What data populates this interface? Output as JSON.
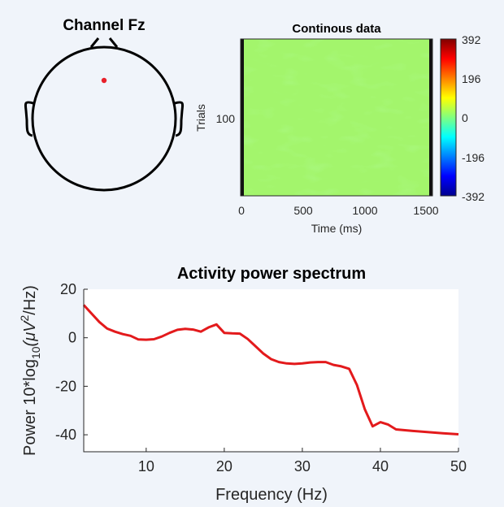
{
  "topomap": {
    "title": "Channel Fz",
    "electrode_color": "#e8202a"
  },
  "erpimage": {
    "title": "Continous data",
    "ylabel": "Trials",
    "xlabel": "Time (ms)",
    "xticks": [
      "0",
      "500",
      "1000",
      "1500"
    ],
    "yticks": [
      "100"
    ],
    "colorbar_ticks": [
      "392",
      "196",
      "0",
      "-196",
      "-392"
    ],
    "fill_color": "#a3f56c"
  },
  "chart_data": {
    "type": "line",
    "title": "Activity power spectrum",
    "xlabel": "Frequency (Hz)",
    "ylabel_prefix": "Power 10*log",
    "ylabel_sub": "10",
    "ylabel_mid": "(μV",
    "ylabel_sup": "2",
    "ylabel_suffix": "/Hz)",
    "xlim": [
      2,
      50
    ],
    "ylim": [
      -47,
      20
    ],
    "xticks": [
      10,
      20,
      30,
      40,
      50
    ],
    "yticks": [
      20,
      0,
      -20,
      -40
    ],
    "line_color": "#e31a1c",
    "x": [
      2,
      3,
      4,
      5,
      6,
      7,
      8,
      9,
      10,
      11,
      12,
      13,
      14,
      15,
      16,
      17,
      18,
      19,
      20,
      21,
      22,
      23,
      24,
      25,
      26,
      27,
      28,
      29,
      30,
      31,
      32,
      33,
      34,
      35,
      36,
      37,
      38,
      39,
      40,
      41,
      42,
      44,
      46,
      48,
      50
    ],
    "y": [
      13.5,
      10,
      6.5,
      3.8,
      2.5,
      1.5,
      0.8,
      -0.7,
      -0.8,
      -0.6,
      0.5,
      2,
      3.3,
      3.7,
      3.4,
      2.5,
      4.3,
      5.5,
      2,
      1.8,
      1.7,
      -0.5,
      -3.5,
      -6.5,
      -8.8,
      -10,
      -10.6,
      -10.8,
      -10.6,
      -10.2,
      -10,
      -10,
      -11.2,
      -11.8,
      -12.8,
      -19.5,
      -29.5,
      -36.5,
      -34.8,
      -35.8,
      -37.8,
      -38.4,
      -38.9,
      -39.4,
      -39.8
    ]
  }
}
